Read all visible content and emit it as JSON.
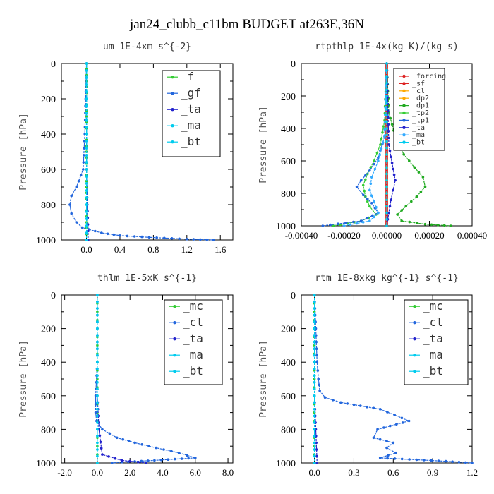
{
  "title": "jan24_clubb_c11bm  BUDGET at263E,36N",
  "colors": {
    "green": "#33cc33",
    "dkgreen": "#22aa22",
    "blue": "#2266dd",
    "navy": "#2222cc",
    "cyan": "#00ccee",
    "red": "#dd2222",
    "orange": "#ffaa00",
    "ltblue": "#33aaff"
  },
  "chart_data": [
    {
      "type": "line",
      "title": "um   1E-4xm s^{-2}",
      "ylabel": "Pressure [hPa]",
      "ylim": [
        1000,
        0
      ],
      "xlim": [
        -0.3,
        1.75
      ],
      "xticks": [
        "0.0",
        "0.4",
        "0.8",
        "1.2",
        "1.6"
      ],
      "yticks": [
        "0",
        "200",
        "400",
        "600",
        "800",
        "1000"
      ],
      "legend": [
        "_f",
        "_gf",
        "_ta",
        "_ma",
        "_bt"
      ],
      "series": [
        {
          "name": "_f",
          "color": "green",
          "x": [
            0,
            0,
            0,
            0,
            0,
            0,
            0,
            0,
            0,
            0,
            0
          ],
          "y": [
            0,
            100,
            200,
            300,
            400,
            500,
            600,
            700,
            800,
            900,
            1000
          ]
        },
        {
          "name": "_gf",
          "color": "blue",
          "x": [
            0,
            -0.01,
            -0.02,
            -0.04,
            -0.12,
            -0.18,
            -0.2,
            -0.18,
            -0.12,
            -0.05,
            0.18,
            0.4,
            0.75,
            1.2,
            1.52
          ],
          "y": [
            0,
            200,
            400,
            600,
            700,
            750,
            800,
            850,
            900,
            930,
            960,
            975,
            985,
            995,
            1000
          ]
        },
        {
          "name": "_ta",
          "color": "navy",
          "x": [
            0,
            0,
            0,
            0,
            0.01,
            0.02,
            0.02
          ],
          "y": [
            0,
            200,
            400,
            600,
            800,
            950,
            1000
          ]
        },
        {
          "name": "_ma",
          "color": "cyan",
          "x": [
            0,
            0,
            0,
            0,
            0,
            0
          ],
          "y": [
            0,
            200,
            400,
            600,
            800,
            1000
          ]
        },
        {
          "name": "_bt",
          "color": "cyan",
          "x": [
            0,
            0,
            0,
            0,
            0,
            0
          ],
          "y": [
            0,
            200,
            400,
            600,
            800,
            1000
          ]
        }
      ]
    },
    {
      "type": "line",
      "title": "rtpthlp  1E-4x(kg K)/(kg s)",
      "ylabel": "Pressure [hPa]",
      "ylim": [
        1000,
        0
      ],
      "xlim": [
        -0.0004,
        0.0004
      ],
      "xticks": [
        "-0.00040",
        "-0.00020",
        "0.00000",
        "0.00020",
        "0.00040"
      ],
      "yticks": [
        "0",
        "200",
        "400",
        "600",
        "800",
        "1000"
      ],
      "legend": [
        "_forcing",
        "_sf",
        "_cl",
        "_dp2",
        "_dp1",
        "_tp2",
        "_tp1",
        "_ta",
        "_ma",
        "_bt"
      ],
      "series": [
        {
          "name": "_forcing",
          "color": "red",
          "x": [
            0,
            0,
            0,
            0,
            0,
            0
          ],
          "y": [
            0,
            200,
            400,
            600,
            800,
            1000
          ]
        },
        {
          "name": "_sf",
          "color": "red",
          "x": [
            0,
            0,
            0,
            0,
            0,
            0
          ],
          "y": [
            0,
            200,
            400,
            600,
            800,
            1000
          ]
        },
        {
          "name": "_cl",
          "color": "orange",
          "x": [
            0,
            0,
            0,
            0,
            0,
            0
          ],
          "y": [
            0,
            200,
            400,
            600,
            800,
            1000
          ]
        },
        {
          "name": "_dp2",
          "color": "orange",
          "x": [
            0,
            0,
            0,
            0,
            0,
            0
          ],
          "y": [
            0,
            200,
            400,
            600,
            800,
            1000
          ]
        },
        {
          "name": "_dp1",
          "color": "dkgreen",
          "x": [
            0,
            1e-05,
            4e-05,
            8e-05,
            0.00013,
            0.00017,
            0.00018,
            0.00014,
            9e-05,
            5e-05,
            7e-05,
            0.00018,
            0.0003
          ],
          "y": [
            0,
            300,
            450,
            560,
            640,
            700,
            760,
            820,
            880,
            930,
            970,
            990,
            1000
          ]
        },
        {
          "name": "_tp2",
          "color": "green",
          "x": [
            0,
            -1e-05,
            -3e-05,
            -6e-05,
            -9e-05,
            -0.00011,
            -0.0001,
            -8e-05,
            -5e-05,
            -0.00012,
            -0.00025
          ],
          "y": [
            0,
            350,
            500,
            600,
            680,
            750,
            820,
            880,
            930,
            970,
            1000
          ]
        },
        {
          "name": "_tp1",
          "color": "blue",
          "x": [
            0,
            -1e-05,
            -4e-05,
            -8e-05,
            -0.00012,
            -0.00014,
            -0.00011,
            -7e-05,
            -4e-05,
            -0.00012,
            -0.0003
          ],
          "y": [
            0,
            450,
            580,
            660,
            720,
            760,
            810,
            860,
            920,
            970,
            1000
          ]
        },
        {
          "name": "_ta",
          "color": "navy",
          "x": [
            0,
            1e-05,
            3e-05,
            4e-05,
            3e-05,
            2e-05,
            1e-05,
            0
          ],
          "y": [
            0,
            500,
            650,
            720,
            780,
            840,
            920,
            1000
          ]
        },
        {
          "name": "_ma",
          "color": "ltblue",
          "x": [
            0,
            -1e-05,
            -4e-05,
            -7e-05,
            -8e-05,
            -6e-05,
            -4e-05,
            -8e-05,
            -0.0002
          ],
          "y": [
            0,
            450,
            600,
            700,
            780,
            850,
            920,
            970,
            1000
          ]
        },
        {
          "name": "_bt",
          "color": "cyan",
          "x": [
            0,
            0,
            0,
            0,
            0,
            0
          ],
          "y": [
            0,
            200,
            400,
            600,
            800,
            1000
          ]
        }
      ]
    },
    {
      "type": "line",
      "title": "thlm  1E-5xK s^{-1}",
      "ylabel": "Pressure [hPa]",
      "ylim": [
        1000,
        0
      ],
      "xlim": [
        -2.2,
        8.3
      ],
      "xticks": [
        "-2.0",
        "0.0",
        "2.0",
        "4.0",
        "6.0",
        "8.0"
      ],
      "yticks": [
        "0",
        "200",
        "400",
        "600",
        "800",
        "1000"
      ],
      "legend": [
        "_mc",
        "_cl",
        "_ta",
        "_ma",
        "_bt"
      ],
      "series": [
        {
          "name": "_mc",
          "color": "green",
          "x": [
            0,
            0,
            0,
            0,
            0,
            0,
            0,
            0,
            0,
            0,
            0
          ],
          "y": [
            0,
            100,
            200,
            300,
            400,
            500,
            600,
            700,
            800,
            900,
            1000
          ]
        },
        {
          "name": "_cl",
          "color": "blue",
          "x": [
            0,
            0,
            0,
            -0.1,
            -0.1,
            -0.05,
            0.3,
            1.2,
            2.3,
            3.6,
            5.0,
            6.0,
            3.5,
            1.5,
            0.9
          ],
          "y": [
            0,
            200,
            400,
            600,
            700,
            750,
            800,
            850,
            880,
            910,
            940,
            970,
            985,
            995,
            1000
          ]
        },
        {
          "name": "_ta",
          "color": "navy",
          "x": [
            0,
            0,
            0,
            0,
            0.1,
            0.3,
            1.5,
            2.5,
            3.0
          ],
          "y": [
            0,
            200,
            400,
            600,
            800,
            950,
            985,
            995,
            1000
          ]
        },
        {
          "name": "_ma",
          "color": "cyan",
          "x": [
            0,
            0,
            0,
            0,
            0,
            0
          ],
          "y": [
            0,
            200,
            400,
            600,
            800,
            1000
          ]
        },
        {
          "name": "_bt",
          "color": "cyan",
          "x": [
            0,
            0,
            0,
            0,
            0,
            0
          ],
          "y": [
            0,
            200,
            400,
            600,
            800,
            1000
          ]
        }
      ]
    },
    {
      "type": "line",
      "title": "rtm  1E-8xkg kg^{-1} s^{-1}",
      "ylabel": "Pressure [hPa]",
      "ylim": [
        1000,
        0
      ],
      "xlim": [
        -0.1,
        1.2
      ],
      "xticks": [
        "0.0",
        "0.3",
        "0.6",
        "0.9",
        "1.2"
      ],
      "yticks": [
        "0",
        "200",
        "400",
        "600",
        "800",
        "1000"
      ],
      "legend": [
        "_mc",
        "_cl",
        "_ta",
        "_ma",
        "_bt"
      ],
      "series": [
        {
          "name": "_mc",
          "color": "green",
          "x": [
            0,
            0,
            0,
            0,
            0,
            0,
            0,
            0,
            0,
            0,
            0
          ],
          "y": [
            0,
            100,
            200,
            300,
            400,
            500,
            600,
            700,
            800,
            900,
            1000
          ]
        },
        {
          "name": "_cl",
          "color": "blue",
          "x": [
            0,
            0.01,
            0.02,
            0.03,
            0.04,
            0.08,
            0.2,
            0.5,
            0.72,
            0.48,
            0.45,
            0.6,
            0.55,
            0.62,
            0.5,
            1.0,
            1.2
          ],
          "y": [
            0,
            200,
            400,
            500,
            570,
            610,
            640,
            680,
            750,
            800,
            850,
            880,
            910,
            940,
            970,
            990,
            1000
          ]
        },
        {
          "name": "_ta",
          "color": "navy",
          "x": [
            0,
            0,
            0,
            0,
            0.01,
            0.02
          ],
          "y": [
            0,
            200,
            400,
            600,
            800,
            1000
          ]
        },
        {
          "name": "_ma",
          "color": "cyan",
          "x": [
            0,
            0,
            0,
            0,
            0,
            0
          ],
          "y": [
            0,
            200,
            400,
            600,
            800,
            1000
          ]
        },
        {
          "name": "_bt",
          "color": "cyan",
          "x": [
            0,
            0,
            0,
            0,
            0,
            0
          ],
          "y": [
            0,
            200,
            400,
            600,
            800,
            1000
          ]
        }
      ]
    }
  ]
}
